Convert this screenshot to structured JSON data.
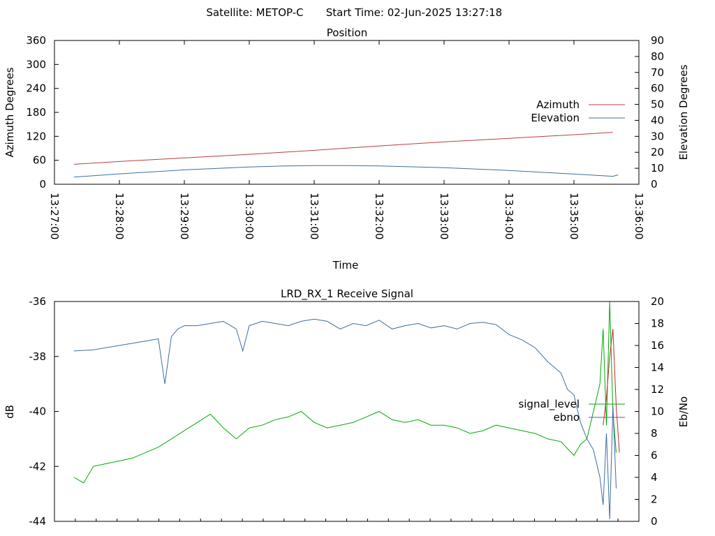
{
  "header": {
    "satellite_label": "Satellite: METOP-C",
    "start_time_label": "Start Time: 02-Jun-2025 13:27:18"
  },
  "chart_data": [
    {
      "type": "line",
      "title": "Position",
      "xlabel": "Time",
      "ylabel": "Azimuth Degrees",
      "y2label": "Elevation Degrees",
      "x_tick_labels": [
        "13:27:00",
        "13:28:00",
        "13:29:00",
        "13:30:00",
        "13:31:00",
        "13:32:00",
        "13:33:00",
        "13:34:00",
        "13:35:00",
        "13:36:00"
      ],
      "xlim_minutes": [
        0,
        9
      ],
      "ylim": [
        0,
        360
      ],
      "y_ticks": [
        0,
        60,
        120,
        180,
        240,
        300,
        360
      ],
      "y2lim": [
        0,
        90
      ],
      "y2_ticks": [
        0,
        10,
        20,
        30,
        40,
        50,
        60,
        70,
        80,
        90
      ],
      "legend_position": "right",
      "series": [
        {
          "name": "Azimuth",
          "axis": "left",
          "color": "#b5403c",
          "x_minutes": [
            0.3,
            1,
            2,
            3,
            4,
            5,
            6,
            7,
            8,
            8.6
          ],
          "values": [
            50,
            57,
            66,
            75,
            85,
            96,
            106,
            115,
            124,
            130
          ]
        },
        {
          "name": "Elevation",
          "axis": "right",
          "color": "#3d6e9e",
          "x_minutes": [
            0.3,
            1,
            2,
            3,
            3.5,
            4,
            4.5,
            5,
            6,
            7,
            8,
            8.6,
            8.68
          ],
          "values": [
            4.5,
            6.5,
            9,
            10.8,
            11.4,
            11.7,
            11.7,
            11.5,
            10.4,
            8.6,
            6.4,
            5,
            5.9
          ]
        }
      ]
    },
    {
      "type": "line",
      "title": "LRD_RX_1 Receive Signal",
      "xlabel": "",
      "ylabel": "dB",
      "y2label": "Eb/No",
      "xlim_minutes": [
        0,
        9
      ],
      "x_minor_ticks": 28,
      "ylim": [
        -44,
        -36
      ],
      "y_tick_labels": [
        "-44",
        "-42",
        "-40",
        "-38",
        "-36"
      ],
      "y2lim": [
        0,
        20
      ],
      "y2_ticks": [
        0,
        2,
        4,
        6,
        8,
        10,
        12,
        14,
        16,
        18,
        20
      ],
      "legend_position": "right",
      "series": [
        {
          "name": "signal_level",
          "axis": "left",
          "color": "#00aa00",
          "x_minutes": [
            0.3,
            0.45,
            0.6,
            0.8,
            1.0,
            1.2,
            1.4,
            1.6,
            1.8,
            2.0,
            2.2,
            2.4,
            2.6,
            2.8,
            3.0,
            3.2,
            3.4,
            3.6,
            3.8,
            4.0,
            4.2,
            4.4,
            4.6,
            4.8,
            5.0,
            5.2,
            5.4,
            5.6,
            5.8,
            6.0,
            6.2,
            6.4,
            6.6,
            6.8,
            7.0,
            7.2,
            7.4,
            7.6,
            7.8,
            8.0,
            8.1,
            8.2,
            8.3,
            8.4,
            8.45,
            8.5,
            8.55,
            8.6,
            8.65
          ],
          "values": [
            -42.4,
            -42.6,
            -42.0,
            -41.9,
            -41.8,
            -41.7,
            -41.5,
            -41.3,
            -41.0,
            -40.7,
            -40.4,
            -40.1,
            -40.6,
            -41.0,
            -40.6,
            -40.5,
            -40.3,
            -40.2,
            -40.0,
            -40.4,
            -40.6,
            -40.5,
            -40.4,
            -40.2,
            -40.0,
            -40.3,
            -40.4,
            -40.3,
            -40.5,
            -40.5,
            -40.6,
            -40.8,
            -40.7,
            -40.5,
            -40.6,
            -40.7,
            -40.8,
            -41.0,
            -41.1,
            -41.6,
            -41.2,
            -41.0,
            -40.0,
            -39.0,
            -37.0,
            -40.5,
            -36.0,
            -40.0,
            -41.5
          ]
        },
        {
          "name": "ebno",
          "axis": "right",
          "color": "#3d6e9e",
          "x_minutes": [
            0.3,
            0.6,
            0.8,
            1.0,
            1.2,
            1.3,
            1.4,
            1.5,
            1.6,
            1.7,
            1.8,
            1.9,
            2.0,
            2.2,
            2.4,
            2.6,
            2.8,
            2.9,
            3.0,
            3.2,
            3.4,
            3.6,
            3.8,
            4.0,
            4.2,
            4.4,
            4.6,
            4.8,
            5.0,
            5.2,
            5.4,
            5.6,
            5.8,
            6.0,
            6.2,
            6.4,
            6.6,
            6.8,
            7.0,
            7.2,
            7.4,
            7.6,
            7.8,
            7.9,
            8.0,
            8.1,
            8.2,
            8.3,
            8.4,
            8.45,
            8.5,
            8.55,
            8.6,
            8.65
          ],
          "values": [
            15.5,
            15.6,
            15.8,
            16.0,
            16.2,
            16.3,
            16.4,
            16.5,
            16.6,
            12.5,
            16.8,
            17.5,
            17.8,
            17.8,
            18.0,
            18.2,
            17.5,
            15.5,
            17.8,
            18.2,
            18.0,
            17.8,
            18.2,
            18.4,
            18.2,
            17.5,
            18.0,
            17.8,
            18.3,
            17.5,
            17.8,
            18.0,
            17.6,
            17.8,
            17.5,
            18.0,
            18.1,
            17.9,
            17.0,
            16.5,
            15.8,
            14.5,
            13.5,
            12.0,
            11.5,
            9.0,
            7.5,
            6.5,
            4.0,
            1.5,
            8.0,
            0.2,
            10.5,
            3.0
          ]
        },
        {
          "name": "",
          "axis": "left",
          "color": "#c0282c",
          "x_minutes": [
            8.45,
            8.5,
            8.55,
            8.6,
            8.65,
            8.7
          ],
          "values": [
            -40.5,
            -39.5,
            -38.0,
            -37.0,
            -39.8,
            -41.5
          ]
        }
      ]
    }
  ]
}
